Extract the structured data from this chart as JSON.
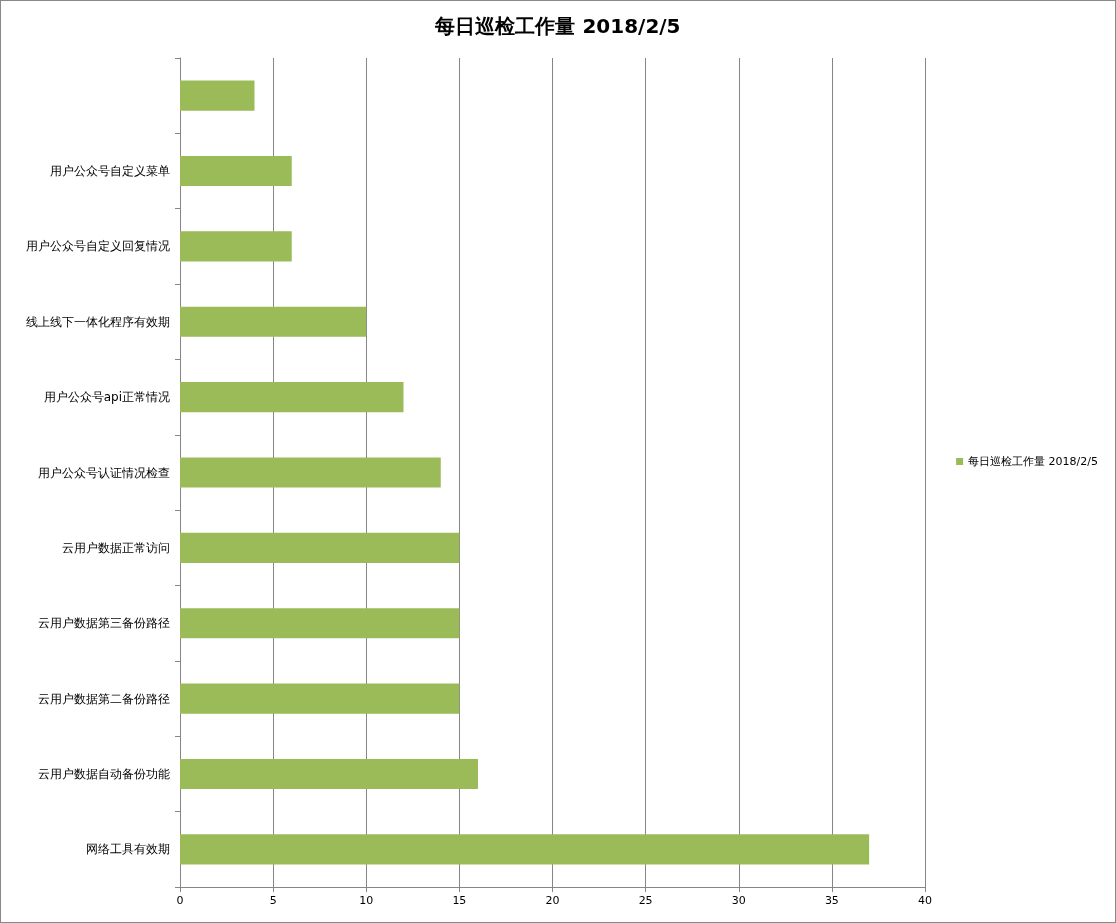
{
  "chart_data": {
    "type": "bar",
    "orientation": "horizontal",
    "title": "每日巡检工作量 2018/2/5",
    "categories": [
      null,
      "用户公众号自定义菜单",
      "用户公众号自定义回复情况",
      "线上线下一体化程序有效期",
      "用户公众号api正常情况",
      "用户公众号认证情况检查",
      "云用户数据正常访问",
      "云用户数据第三备份路径",
      "云用户数据第二备份路径",
      "云用户数据自动备份功能",
      "网络工具有效期"
    ],
    "series": [
      {
        "name": "每日巡检工作量 2018/2/5",
        "color": "#9bbb59",
        "values": [
          4,
          6,
          6,
          10,
          12,
          14,
          15,
          15,
          15,
          16,
          37
        ]
      }
    ],
    "xlim": [
      0,
      40
    ],
    "xticks": [
      0,
      5,
      10,
      15,
      20,
      25,
      30,
      35,
      40
    ],
    "grid": "x",
    "legend": "right"
  }
}
